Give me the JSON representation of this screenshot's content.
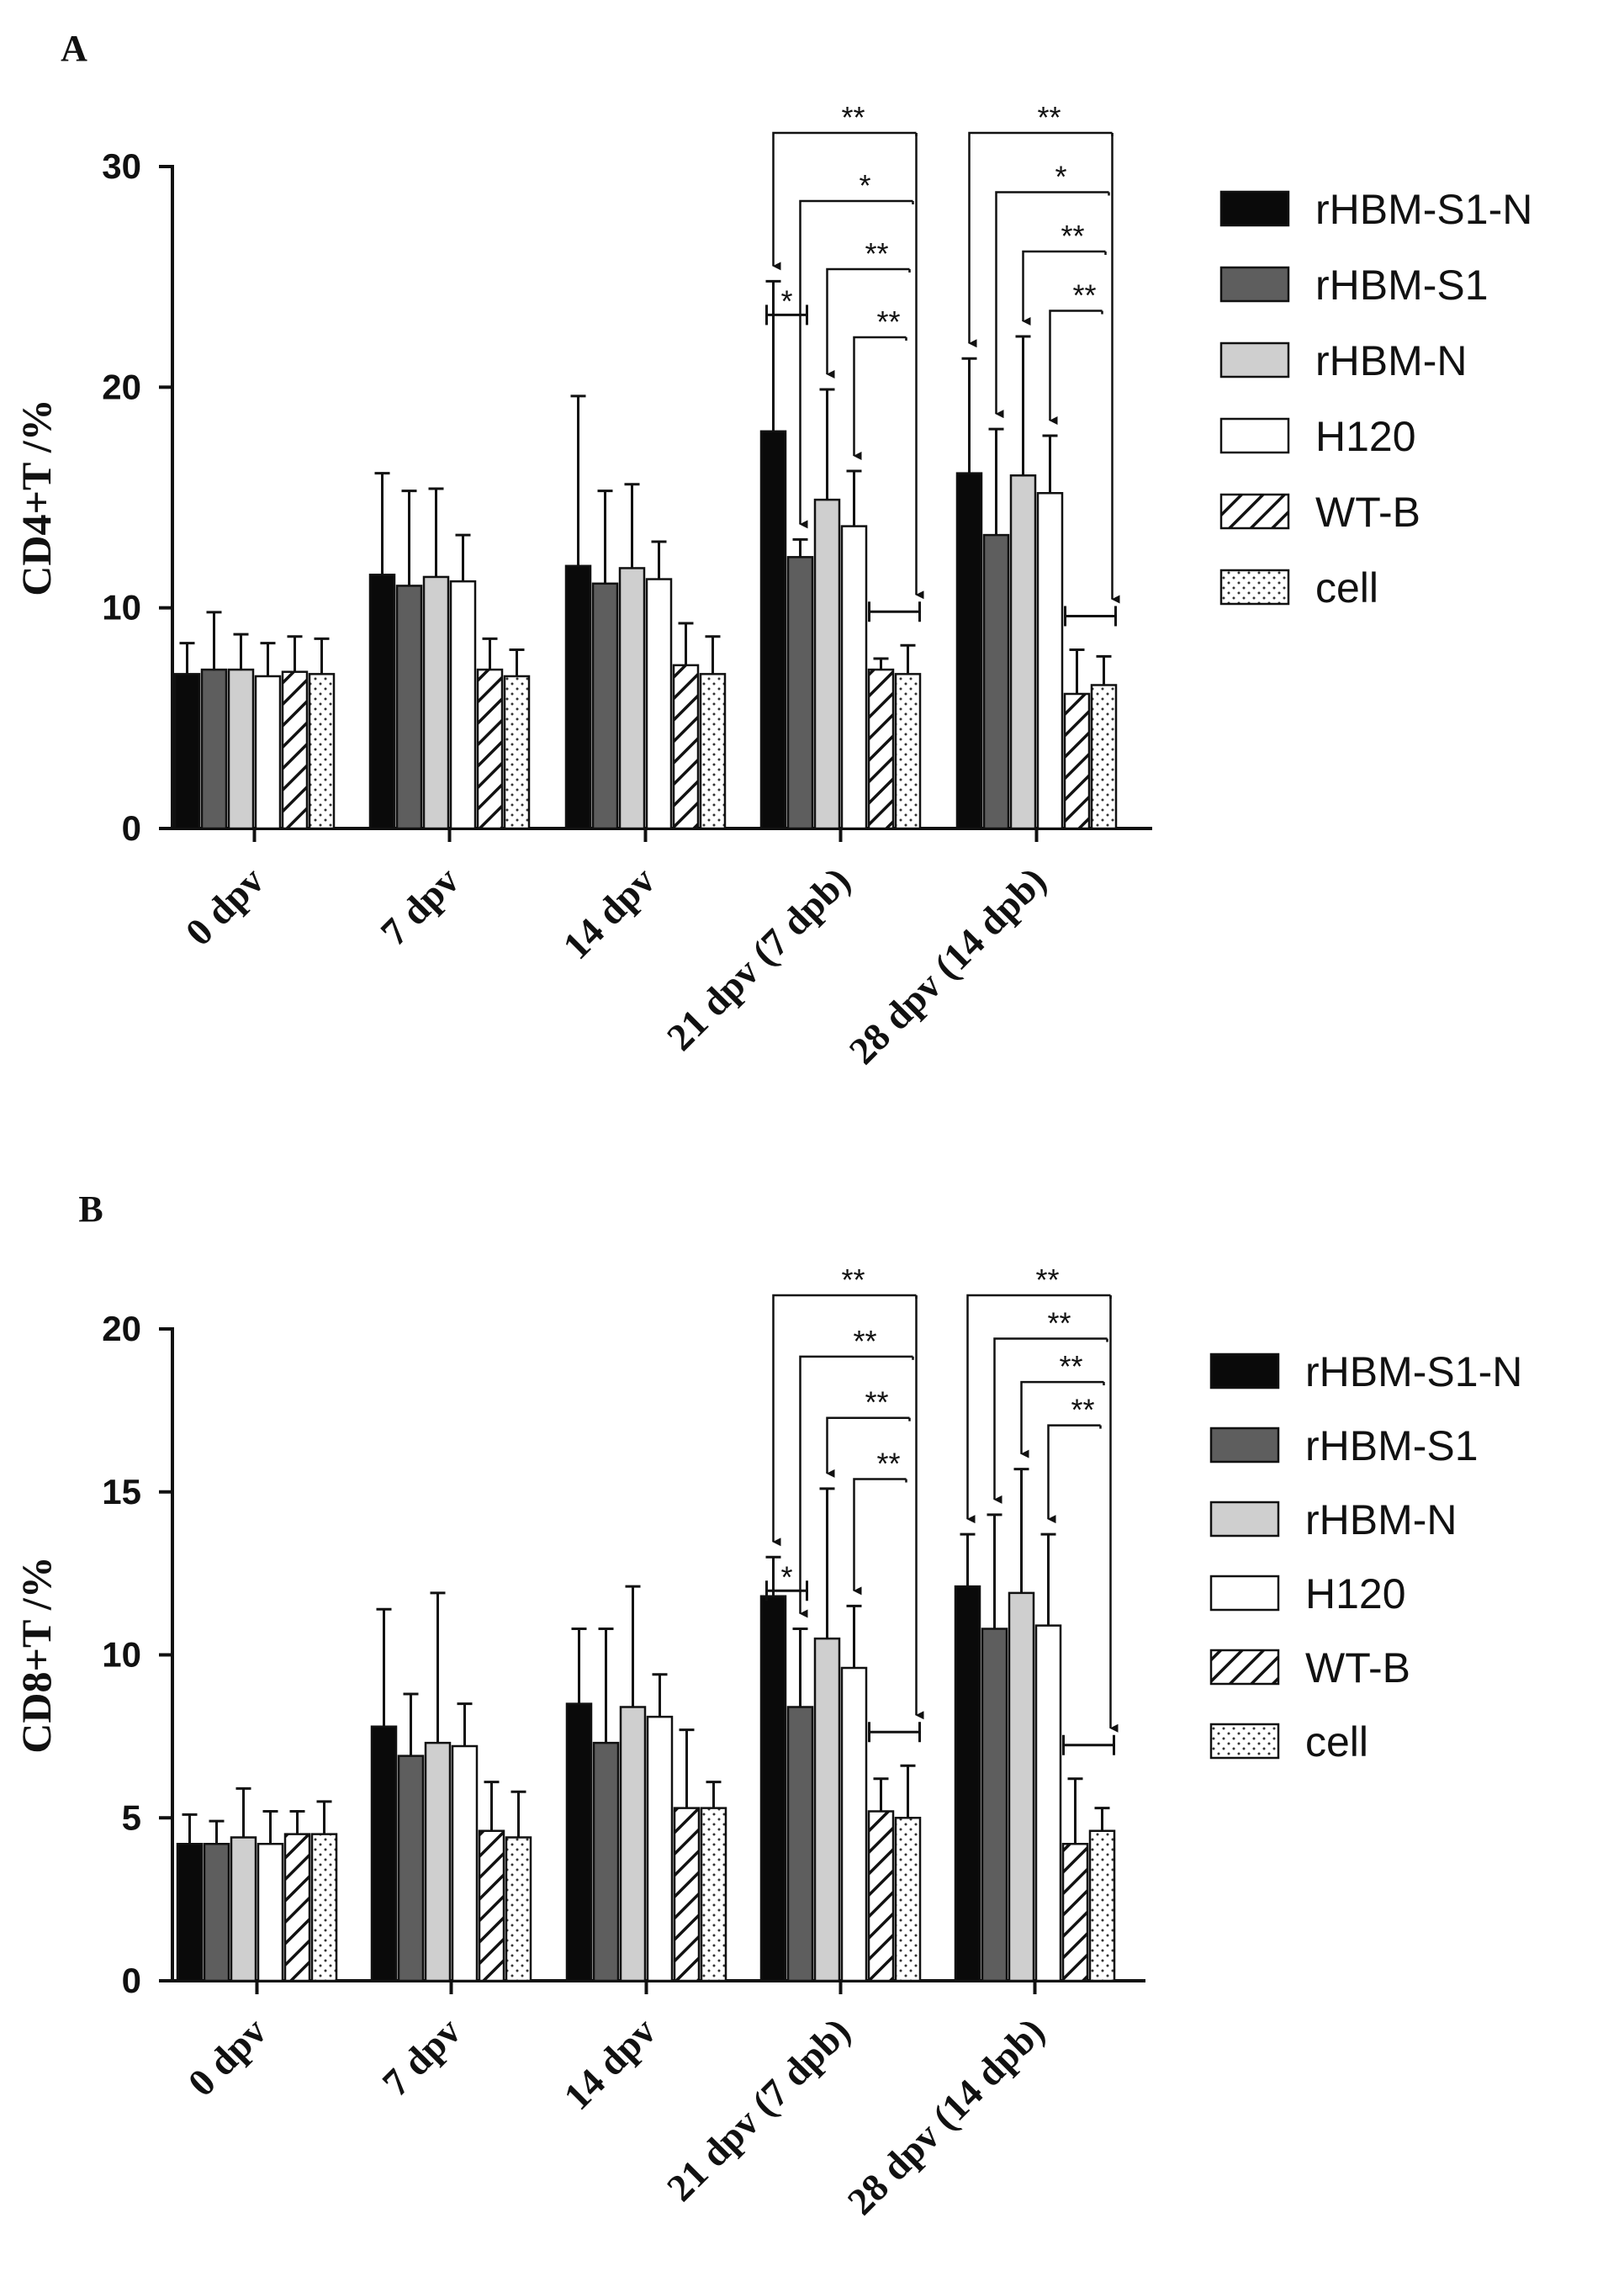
{
  "chart_data": [
    {
      "type": "bar",
      "panel": "A",
      "ylabel": "CD4+T /%",
      "ylim": [
        0,
        30
      ],
      "yticks": [
        0,
        10,
        20,
        30
      ],
      "categories": [
        "0 dpv",
        "7 dpv",
        "14 dpv",
        "21 dpv (7 dpb)",
        "28 dpv (14 dpb)"
      ],
      "series": [
        {
          "name": "rHBM-S1-N",
          "values": [
            7.0,
            11.5,
            11.9,
            18.0,
            16.1
          ],
          "errors": [
            1.4,
            4.6,
            7.7,
            6.8,
            5.2
          ]
        },
        {
          "name": "rHBM-S1",
          "values": [
            7.2,
            11.0,
            11.1,
            12.3,
            13.3
          ],
          "errors": [
            2.6,
            4.3,
            4.2,
            0.8,
            4.8
          ]
        },
        {
          "name": "rHBM-N",
          "values": [
            7.2,
            11.4,
            11.8,
            14.9,
            16.0
          ],
          "errors": [
            1.6,
            4.0,
            3.8,
            5.0,
            6.3
          ]
        },
        {
          "name": "H120",
          "values": [
            6.9,
            11.2,
            11.3,
            13.7,
            15.2
          ],
          "errors": [
            1.5,
            2.1,
            1.7,
            2.5,
            2.6
          ]
        },
        {
          "name": "WT-B",
          "values": [
            7.1,
            7.2,
            7.4,
            7.2,
            6.1
          ],
          "errors": [
            1.6,
            1.4,
            1.9,
            0.5,
            2.0
          ]
        },
        {
          "name": "cell",
          "values": [
            7.0,
            6.9,
            7.0,
            7.0,
            6.5
          ],
          "errors": [
            1.6,
            1.2,
            1.7,
            1.3,
            1.3
          ]
        }
      ],
      "significance": [
        {
          "category": "21 dpv (7 dpb)",
          "marks": [
            "**",
            "*",
            "*",
            "**",
            "**"
          ]
        },
        {
          "category": "28 dpv (14 dpb)",
          "marks": [
            "**",
            "*",
            "**",
            "**"
          ]
        }
      ]
    },
    {
      "type": "bar",
      "panel": "B",
      "ylabel": "CD8+T /%",
      "ylim": [
        0,
        20
      ],
      "yticks": [
        0,
        5,
        10,
        15,
        20
      ],
      "categories": [
        "0 dpv",
        "7 dpv",
        "14 dpv",
        "21 dpv (7 dpb)",
        "28 dpv (14 dpb)"
      ],
      "series": [
        {
          "name": "rHBM-S1-N",
          "values": [
            4.2,
            7.8,
            8.5,
            11.8,
            12.1
          ],
          "errors": [
            0.9,
            3.6,
            2.3,
            1.2,
            1.6
          ]
        },
        {
          "name": "rHBM-S1",
          "values": [
            4.2,
            6.9,
            7.3,
            8.4,
            10.8
          ],
          "errors": [
            0.7,
            1.9,
            3.5,
            2.4,
            3.5
          ]
        },
        {
          "name": "rHBM-N",
          "values": [
            4.4,
            7.3,
            8.4,
            10.5,
            11.9
          ],
          "errors": [
            1.5,
            4.6,
            3.7,
            4.6,
            3.8
          ]
        },
        {
          "name": "H120",
          "values": [
            4.2,
            7.2,
            8.1,
            9.6,
            10.9
          ],
          "errors": [
            1.0,
            1.3,
            1.3,
            1.9,
            2.8
          ]
        },
        {
          "name": "WT-B",
          "values": [
            4.5,
            4.6,
            5.3,
            5.2,
            4.2
          ],
          "errors": [
            0.7,
            1.5,
            2.4,
            1.0,
            2.0
          ]
        },
        {
          "name": "cell",
          "values": [
            4.5,
            4.4,
            5.3,
            5.0,
            4.6
          ],
          "errors": [
            1.0,
            1.4,
            0.8,
            1.6,
            0.7
          ]
        }
      ],
      "significance": [
        {
          "category": "21 dpv (7 dpb)",
          "marks": [
            "**",
            "*",
            "**",
            "**",
            "**"
          ]
        },
        {
          "category": "28 dpv (14 dpb)",
          "marks": [
            "**",
            "**",
            "**",
            "**"
          ]
        }
      ]
    }
  ]
}
